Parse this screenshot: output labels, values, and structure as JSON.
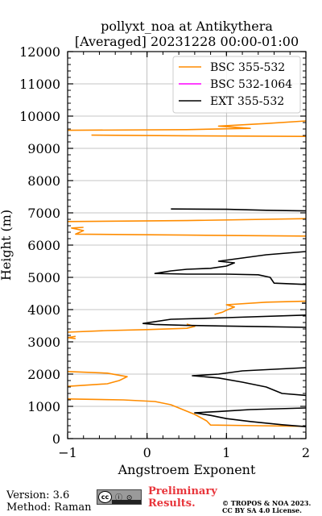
{
  "chart_data": {
    "type": "line",
    "title": "pollyxt_noa at Antikythera",
    "subtitle": "[Averaged] 20231228 00:00-01:00",
    "xlabel": "Angstroem Exponent",
    "ylabel": "Height (m)",
    "xlim": [
      -1,
      2
    ],
    "ylim": [
      0,
      12000
    ],
    "xticks": [
      -1,
      0,
      1,
      2
    ],
    "yticks": [
      0,
      1000,
      2000,
      3000,
      4000,
      5000,
      6000,
      7000,
      8000,
      9000,
      10000,
      11000,
      12000
    ],
    "grid": true,
    "legend_position": "top-right",
    "series": [
      {
        "name": "BSC 355-532",
        "color": "#ff8c00",
        "points": [
          [
            2.0,
            380
          ],
          [
            1.4,
            400
          ],
          [
            0.8,
            420
          ],
          [
            0.75,
            550
          ],
          [
            0.6,
            750
          ],
          [
            0.45,
            900
          ],
          [
            0.3,
            1050
          ],
          [
            0.1,
            1150
          ],
          [
            -0.3,
            1200
          ],
          [
            -1.0,
            1230
          ],
          [
            null,
            null
          ],
          [
            -1.0,
            1620
          ],
          [
            -0.5,
            1700
          ],
          [
            -0.35,
            1800
          ],
          [
            -0.25,
            1920
          ],
          [
            -0.5,
            2030
          ],
          [
            -1.0,
            2080
          ],
          [
            null,
            null
          ],
          [
            -0.9,
            3100
          ],
          [
            -1.0,
            3130
          ],
          [
            -0.9,
            3170
          ],
          [
            null,
            null
          ],
          [
            -1.0,
            3300
          ],
          [
            -0.5,
            3350
          ],
          [
            0.0,
            3380
          ],
          [
            0.5,
            3420
          ],
          [
            0.6,
            3480
          ],
          [
            0.5,
            3550
          ],
          [
            null,
            null
          ],
          [
            0.85,
            3850
          ],
          [
            0.95,
            3920
          ],
          [
            1.0,
            3980
          ],
          [
            1.1,
            4080
          ],
          [
            1.0,
            4150
          ],
          [
            1.5,
            4230
          ],
          [
            2.0,
            4260
          ],
          [
            null,
            null
          ],
          [
            2.0,
            6280
          ],
          [
            0.5,
            6310
          ],
          [
            -0.9,
            6340
          ],
          [
            -0.8,
            6450
          ],
          [
            -0.95,
            6530
          ],
          [
            -0.8,
            6550
          ],
          [
            null,
            null
          ],
          [
            -1.0,
            6730
          ],
          [
            0.5,
            6760
          ],
          [
            2.0,
            6820
          ],
          [
            null,
            null
          ],
          [
            2.0,
            9370
          ],
          [
            0.5,
            9390
          ],
          [
            -0.7,
            9410
          ],
          [
            null,
            null
          ],
          [
            -1.0,
            9560
          ],
          [
            0.5,
            9580
          ],
          [
            1.3,
            9620
          ],
          [
            0.9,
            9690
          ],
          [
            1.5,
            9770
          ],
          [
            2.0,
            9850
          ]
        ]
      },
      {
        "name": "BSC 532-1064",
        "color": "#ff00ff",
        "points": []
      },
      {
        "name": "EXT 355-532",
        "color": "#000000",
        "points": [
          [
            2.0,
            370
          ],
          [
            1.7,
            430
          ],
          [
            1.3,
            530
          ],
          [
            1.0,
            620
          ],
          [
            0.8,
            720
          ],
          [
            0.6,
            800
          ],
          [
            0.9,
            840
          ],
          [
            1.3,
            900
          ],
          [
            2.0,
            950
          ],
          [
            null,
            null
          ],
          [
            2.0,
            1340
          ],
          [
            1.7,
            1400
          ],
          [
            1.6,
            1500
          ],
          [
            1.5,
            1600
          ],
          [
            1.2,
            1750
          ],
          [
            0.9,
            1880
          ],
          [
            0.57,
            1950
          ],
          [
            0.9,
            2000
          ],
          [
            1.2,
            2100
          ],
          [
            2.0,
            2200
          ],
          [
            null,
            null
          ],
          [
            2.0,
            3450
          ],
          [
            1.5,
            3470
          ],
          [
            1.0,
            3490
          ],
          [
            0.5,
            3510
          ],
          [
            0.1,
            3540
          ],
          [
            -0.05,
            3570
          ],
          [
            0.3,
            3700
          ],
          [
            1.0,
            3750
          ],
          [
            2.0,
            3830
          ],
          [
            null,
            null
          ],
          [
            1.95,
            4200
          ],
          [
            2.0,
            4200
          ],
          [
            null,
            null
          ],
          [
            2.0,
            4780
          ],
          [
            1.6,
            4820
          ],
          [
            1.55,
            5000
          ],
          [
            1.4,
            5080
          ],
          [
            1.0,
            5100
          ],
          [
            0.5,
            5100
          ],
          [
            0.1,
            5120
          ],
          [
            0.3,
            5200
          ],
          [
            0.5,
            5250
          ],
          [
            0.8,
            5280
          ],
          [
            1.0,
            5350
          ],
          [
            1.1,
            5450
          ],
          [
            0.9,
            5500
          ],
          [
            1.2,
            5600
          ],
          [
            1.5,
            5700
          ],
          [
            2.0,
            5800
          ],
          [
            null,
            null
          ],
          [
            0.3,
            7120
          ],
          [
            1.0,
            7110
          ],
          [
            1.5,
            7080
          ],
          [
            2.0,
            7060
          ]
        ]
      }
    ]
  },
  "footer": {
    "version": "Version: 3.6",
    "method": "Method: Raman",
    "prelim_line1": "Preliminary",
    "prelim_line2": "Results.",
    "license_line1": "© TROPOS & NOA 2023.",
    "license_line2": "CC BY SA 4.0 License."
  }
}
